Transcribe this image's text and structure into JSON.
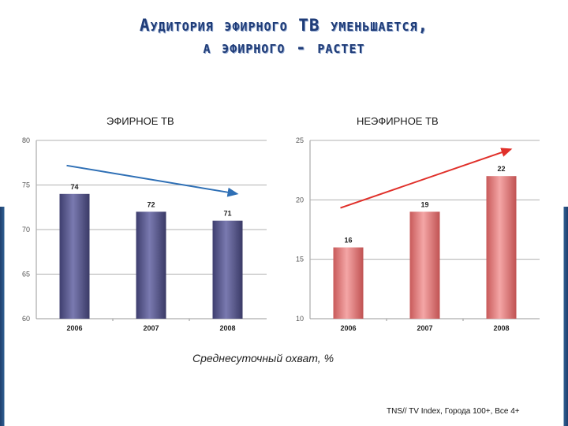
{
  "title_line1": "Аудитория эфирного ТВ уменьшается,",
  "title_line2": "а эфирного - растет",
  "caption": "Среднесуточный охват, %",
  "source": "TNS// TV Index, Города 100+, Все 4+",
  "colors": {
    "title": "#1f3c78",
    "bar_left": "#5a5a8c",
    "bar_right": "#e07f7f",
    "arrow_down": "#2e6fb5",
    "arrow_up": "#e0302a"
  },
  "chart_data": [
    {
      "type": "bar",
      "title": "ЭФИРНОЕ ТВ",
      "categories": [
        "2006",
        "2007",
        "2008"
      ],
      "values": [
        74,
        72,
        71
      ],
      "ylim": [
        60,
        80
      ],
      "yticks": [
        "80",
        "75",
        "70",
        "65",
        "60"
      ],
      "grid": true,
      "trend": "down"
    },
    {
      "type": "bar",
      "title": "НЕЭФИРНОЕ ТВ",
      "categories": [
        "2006",
        "2007",
        "2008"
      ],
      "values": [
        16,
        19,
        22
      ],
      "ylim": [
        10,
        25
      ],
      "yticks": [
        "25",
        "20",
        "15",
        "10"
      ],
      "grid": true,
      "trend": "up"
    }
  ]
}
